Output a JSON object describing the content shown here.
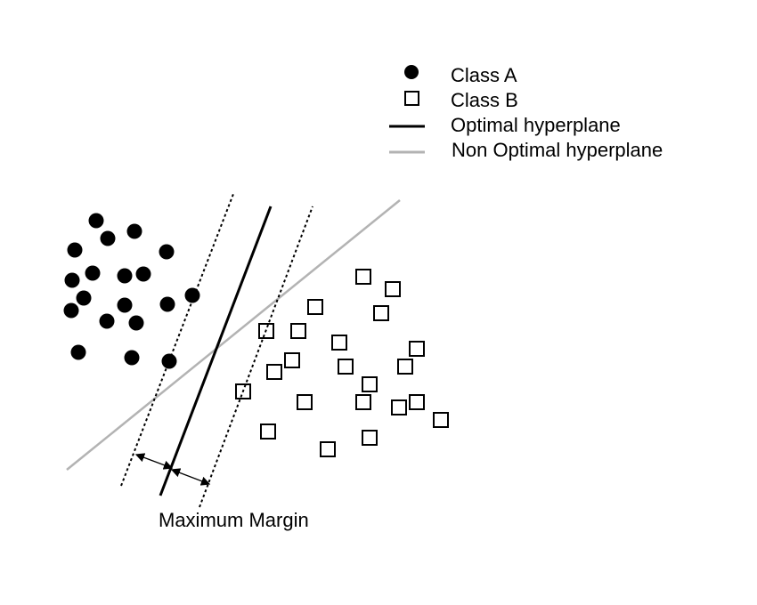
{
  "legend": {
    "class_a": "Class A",
    "class_b": "Class B",
    "optimal": "Optimal hyperplane",
    "non_optimal": "Non Optimal hyperplane"
  },
  "caption": "Maximum Margin",
  "colors": {
    "points": "#000000",
    "optimal_line": "#000000",
    "non_optimal_line": "#b3b3b3",
    "background": "#ffffff"
  },
  "class_a_points": [
    [
      108,
      248
    ],
    [
      121,
      268
    ],
    [
      151,
      260
    ],
    [
      84,
      281
    ],
    [
      187,
      283
    ],
    [
      104,
      307
    ],
    [
      140,
      310
    ],
    [
      161,
      308
    ],
    [
      81,
      315
    ],
    [
      94,
      335
    ],
    [
      140,
      343
    ],
    [
      80,
      349
    ],
    [
      188,
      342
    ],
    [
      216,
      332
    ],
    [
      120,
      361
    ],
    [
      153,
      363
    ],
    [
      88,
      396
    ],
    [
      148,
      402
    ],
    [
      190,
      406
    ]
  ],
  "class_b_points": [
    [
      408,
      311
    ],
    [
      441,
      325
    ],
    [
      354,
      345
    ],
    [
      428,
      352
    ],
    [
      299,
      372
    ],
    [
      335,
      372
    ],
    [
      381,
      385
    ],
    [
      468,
      392
    ],
    [
      328,
      405
    ],
    [
      388,
      412
    ],
    [
      455,
      412
    ],
    [
      308,
      418
    ],
    [
      415,
      432
    ],
    [
      273,
      440
    ],
    [
      342,
      452
    ],
    [
      408,
      452
    ],
    [
      468,
      452
    ],
    [
      448,
      458
    ],
    [
      495,
      472
    ],
    [
      301,
      485
    ],
    [
      415,
      492
    ],
    [
      368,
      505
    ]
  ]
}
